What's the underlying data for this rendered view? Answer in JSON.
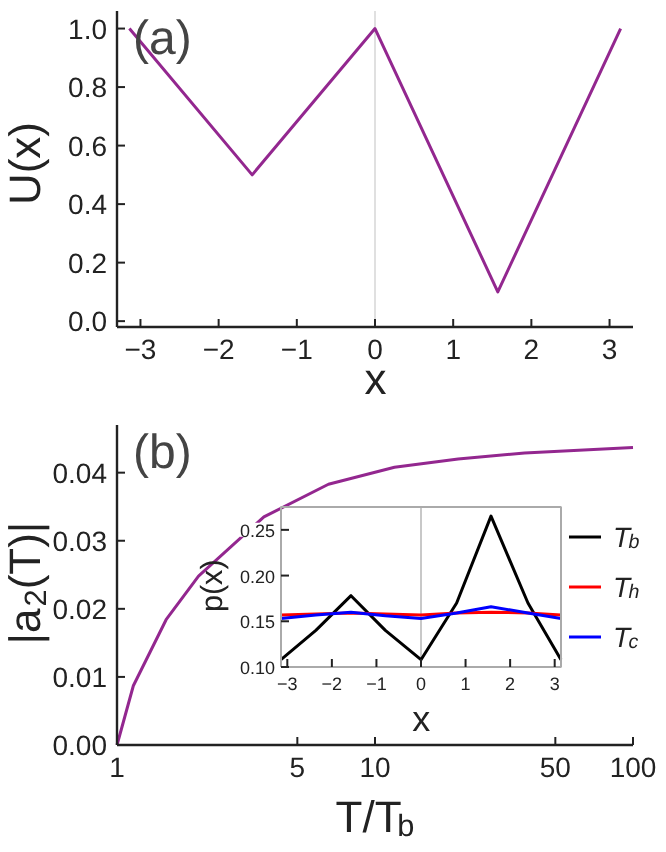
{
  "chart_data": [
    {
      "type": "line",
      "annotations": [
        "(a)"
      ],
      "xlabel": "x",
      "ylabel": "U(x)",
      "x": [
        -3.1416,
        -1.5708,
        0,
        1.5708,
        3.1416
      ],
      "values": [
        1.0,
        0.5,
        1.0,
        0.1,
        1.0
      ],
      "color": "#93278f",
      "xlim": [
        -3.3,
        3.3
      ],
      "xticks": [
        -3,
        -2,
        -1,
        0,
        1,
        2,
        3
      ],
      "ylim": [
        -0.02,
        1.06
      ],
      "yticks": [
        {
          "value": 0,
          "label": "0.0"
        },
        {
          "value": 0.2,
          "label": "0.2"
        },
        {
          "value": 0.4,
          "label": "0.4"
        },
        {
          "value": 0.6,
          "label": "0.6"
        },
        {
          "value": 0.8,
          "label": "0.8"
        },
        {
          "value": 1.0,
          "label": "1.0"
        }
      ],
      "ref_lines": [
        {
          "axis": "x",
          "value": 0,
          "color": "#e0e0e0"
        }
      ],
      "marker": "none"
    },
    {
      "type": "line",
      "annotations": [
        "(b)"
      ],
      "xlabel": "T/T$_{b}$",
      "ylabel": "|a$_{2}$(T)|",
      "log": "x",
      "x": [
        1,
        1.157,
        1.55,
        2.07,
        3.71,
        6.6,
        11.9,
        21,
        38,
        100
      ],
      "values": [
        0,
        0.0087,
        0.0184,
        0.0248,
        0.0335,
        0.0383,
        0.0408,
        0.042,
        0.0429,
        0.0437
      ],
      "color": "#93278f",
      "xlim": [
        1,
        100
      ],
      "xticks": [
        1,
        5,
        10,
        50,
        100
      ],
      "ylim": [
        0,
        0.047
      ],
      "yticks": [
        {
          "value": 0,
          "label": "0.00"
        },
        {
          "value": 0.01,
          "label": "0.01"
        },
        {
          "value": 0.02,
          "label": "0.02"
        },
        {
          "value": 0.03,
          "label": "0.03"
        },
        {
          "value": 0.04,
          "label": "0.04"
        }
      ],
      "marker": "none"
    },
    {
      "type": "line",
      "xlabel": "x",
      "ylabel": "p(x)",
      "legend": "right",
      "xlim": [
        -3.1416,
        3.1416
      ],
      "xticks": [
        -3,
        -2,
        -1,
        0,
        1,
        2,
        3
      ],
      "ylim": [
        0.1,
        0.275
      ],
      "yticks": [
        {
          "value": 0.1,
          "label": "0.10"
        },
        {
          "value": 0.15,
          "label": "0.15"
        },
        {
          "value": 0.2,
          "label": "0.20"
        },
        {
          "value": 0.25,
          "label": "0.25"
        }
      ],
      "ref_lines": [
        {
          "axis": "x",
          "value": 0,
          "color": "#c8c8c8"
        }
      ],
      "marker": "none",
      "x": [
        -3.1416,
        -2.36,
        -1.5708,
        -0.8,
        0,
        0.8,
        1.5708,
        2.4,
        3.1416
      ],
      "series": [
        {
          "name": "T$_{b}$",
          "color": "#000000",
          "values": [
            0.108,
            0.14,
            0.178,
            0.14,
            0.108,
            0.17,
            0.265,
            0.17,
            0.108
          ]
        },
        {
          "name": "T$_{h}$",
          "color": "#ff0000",
          "values": [
            0.157,
            0.158,
            0.159,
            0.158,
            0.157,
            0.159,
            0.16,
            0.159,
            0.157
          ]
        },
        {
          "name": "T$_{c}$",
          "color": "#0000ff",
          "values": [
            0.153,
            0.157,
            0.16,
            0.156,
            0.153,
            0.159,
            0.166,
            0.159,
            0.153
          ]
        }
      ]
    }
  ]
}
